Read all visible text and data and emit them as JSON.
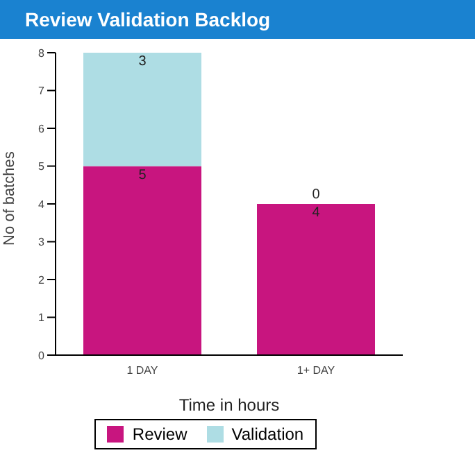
{
  "chart_data": {
    "type": "bar",
    "title": "Review Validation Backlog",
    "xlabel": "Time in hours",
    "ylabel": "No of batches",
    "categories": [
      "1 DAY",
      "1+ DAY"
    ],
    "series": [
      {
        "name": "Review",
        "color": "#c8157f",
        "values": [
          5,
          4
        ]
      },
      {
        "name": "Validation",
        "color": "#aedde4",
        "values": [
          3,
          0
        ]
      }
    ],
    "stacked": true,
    "ylim": [
      0,
      8
    ],
    "yticks": [
      0,
      1,
      2,
      3,
      4,
      5,
      6,
      7,
      8
    ],
    "data_labels": true,
    "legend": "bottom",
    "grid": false
  }
}
